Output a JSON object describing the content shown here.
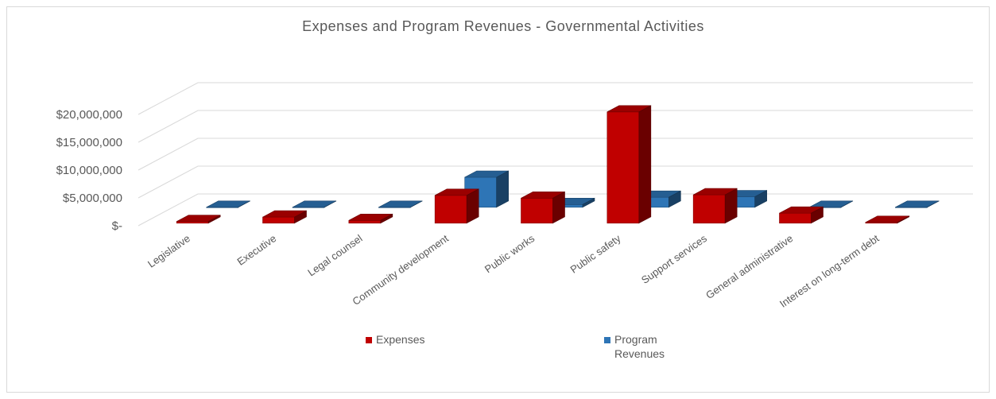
{
  "chart_data": {
    "type": "bar",
    "title": "Expenses and Program Revenues - Governmental Activities",
    "categories": [
      "Legislative",
      "Executive",
      "Legal counsel",
      "Community development",
      "Public works",
      "Public safety",
      "Support services",
      "General administrative",
      "Interest on long-term debt"
    ],
    "series": [
      {
        "name": "Expenses",
        "color": "#c00000",
        "values": [
          300000,
          1100000,
          500000,
          5000000,
          4500000,
          20000000,
          5100000,
          1800000,
          150000
        ]
      },
      {
        "name": "Program Revenues",
        "color": "#2e75b6",
        "values": [
          0,
          0,
          0,
          5400000,
          500000,
          1800000,
          1900000,
          0,
          0
        ]
      }
    ],
    "y_ticks": [
      "$-",
      "$5,000,000",
      "$10,000,000",
      "$15,000,000",
      "$20,000,000"
    ],
    "ylim": [
      0,
      20000000
    ],
    "grid": true,
    "legend": "bottom",
    "legend_labels": {
      "expenses": "Expenses",
      "revenues_line1": "Program",
      "revenues_line2": "Revenues"
    }
  }
}
